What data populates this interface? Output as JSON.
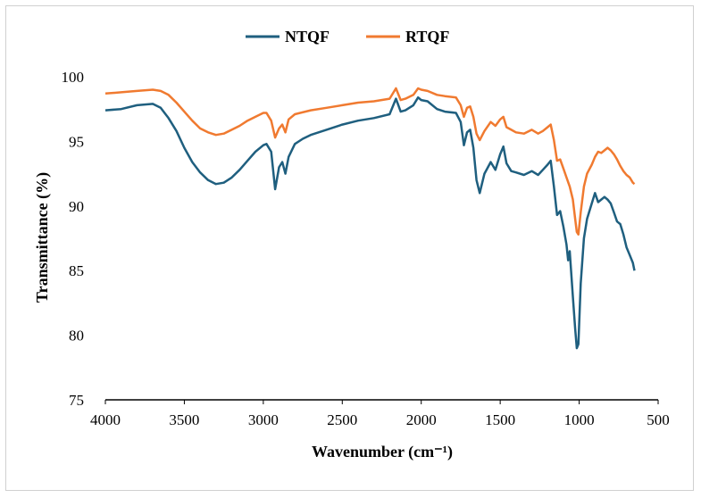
{
  "chart_data": {
    "type": "line",
    "title": "",
    "xlabel": "Wavenumber (cm⁻¹)",
    "ylabel": "Transmittance (%)",
    "xlim": [
      4000,
      500
    ],
    "ylim": [
      75,
      100
    ],
    "x_reversed": true,
    "x_ticks": [
      "4000",
      "3500",
      "3000",
      "2500",
      "2000",
      "1500",
      "1000",
      "500"
    ],
    "y_ticks": [
      "75",
      "80",
      "85",
      "90",
      "95",
      "100"
    ],
    "legend_position": "top",
    "grid": false,
    "series": [
      {
        "name": "NTQF",
        "color": "#1f5f7f",
        "points": [
          [
            4000,
            97.4
          ],
          [
            3900,
            97.5
          ],
          [
            3800,
            97.8
          ],
          [
            3700,
            97.9
          ],
          [
            3650,
            97.6
          ],
          [
            3600,
            96.8
          ],
          [
            3550,
            95.8
          ],
          [
            3500,
            94.5
          ],
          [
            3450,
            93.4
          ],
          [
            3400,
            92.6
          ],
          [
            3350,
            92.0
          ],
          [
            3300,
            91.7
          ],
          [
            3250,
            91.8
          ],
          [
            3200,
            92.2
          ],
          [
            3150,
            92.8
          ],
          [
            3100,
            93.5
          ],
          [
            3050,
            94.2
          ],
          [
            3000,
            94.7
          ],
          [
            2980,
            94.8
          ],
          [
            2950,
            94.2
          ],
          [
            2925,
            91.3
          ],
          [
            2900,
            93.0
          ],
          [
            2880,
            93.4
          ],
          [
            2860,
            92.5
          ],
          [
            2840,
            93.8
          ],
          [
            2800,
            94.8
          ],
          [
            2750,
            95.2
          ],
          [
            2700,
            95.5
          ],
          [
            2600,
            95.9
          ],
          [
            2500,
            96.3
          ],
          [
            2400,
            96.6
          ],
          [
            2300,
            96.8
          ],
          [
            2200,
            97.1
          ],
          [
            2160,
            98.3
          ],
          [
            2130,
            97.3
          ],
          [
            2100,
            97.4
          ],
          [
            2050,
            97.8
          ],
          [
            2020,
            98.4
          ],
          [
            2000,
            98.2
          ],
          [
            1960,
            98.1
          ],
          [
            1900,
            97.5
          ],
          [
            1850,
            97.3
          ],
          [
            1780,
            97.2
          ],
          [
            1750,
            96.5
          ],
          [
            1730,
            94.7
          ],
          [
            1710,
            95.7
          ],
          [
            1690,
            95.9
          ],
          [
            1670,
            94.5
          ],
          [
            1650,
            92.0
          ],
          [
            1630,
            91.0
          ],
          [
            1600,
            92.5
          ],
          [
            1560,
            93.4
          ],
          [
            1530,
            92.8
          ],
          [
            1500,
            94.0
          ],
          [
            1480,
            94.6
          ],
          [
            1460,
            93.3
          ],
          [
            1430,
            92.7
          ],
          [
            1400,
            92.6
          ],
          [
            1350,
            92.4
          ],
          [
            1300,
            92.7
          ],
          [
            1260,
            92.4
          ],
          [
            1230,
            92.8
          ],
          [
            1200,
            93.2
          ],
          [
            1180,
            93.5
          ],
          [
            1160,
            91.5
          ],
          [
            1140,
            89.3
          ],
          [
            1120,
            89.6
          ],
          [
            1100,
            88.4
          ],
          [
            1080,
            87.0
          ],
          [
            1070,
            85.8
          ],
          [
            1060,
            86.5
          ],
          [
            1040,
            83.0
          ],
          [
            1025,
            80.5
          ],
          [
            1015,
            79.0
          ],
          [
            1005,
            79.3
          ],
          [
            990,
            84.0
          ],
          [
            970,
            87.5
          ],
          [
            950,
            89.0
          ],
          [
            920,
            90.2
          ],
          [
            900,
            91.0
          ],
          [
            880,
            90.3
          ],
          [
            860,
            90.5
          ],
          [
            840,
            90.7
          ],
          [
            820,
            90.5
          ],
          [
            800,
            90.2
          ],
          [
            780,
            89.5
          ],
          [
            760,
            88.8
          ],
          [
            740,
            88.6
          ],
          [
            720,
            87.8
          ],
          [
            700,
            86.8
          ],
          [
            680,
            86.2
          ],
          [
            660,
            85.6
          ],
          [
            650,
            85.0
          ]
        ]
      },
      {
        "name": "RTQF",
        "color": "#f07a30",
        "points": [
          [
            4000,
            98.7
          ],
          [
            3900,
            98.8
          ],
          [
            3800,
            98.9
          ],
          [
            3700,
            99.0
          ],
          [
            3650,
            98.9
          ],
          [
            3600,
            98.6
          ],
          [
            3550,
            98.0
          ],
          [
            3500,
            97.3
          ],
          [
            3450,
            96.6
          ],
          [
            3400,
            96.0
          ],
          [
            3350,
            95.7
          ],
          [
            3300,
            95.5
          ],
          [
            3250,
            95.6
          ],
          [
            3200,
            95.9
          ],
          [
            3150,
            96.2
          ],
          [
            3100,
            96.6
          ],
          [
            3050,
            96.9
          ],
          [
            3000,
            97.2
          ],
          [
            2980,
            97.2
          ],
          [
            2950,
            96.6
          ],
          [
            2925,
            95.3
          ],
          [
            2900,
            96.0
          ],
          [
            2880,
            96.3
          ],
          [
            2860,
            95.7
          ],
          [
            2840,
            96.7
          ],
          [
            2800,
            97.1
          ],
          [
            2700,
            97.4
          ],
          [
            2600,
            97.6
          ],
          [
            2500,
            97.8
          ],
          [
            2400,
            98.0
          ],
          [
            2300,
            98.1
          ],
          [
            2200,
            98.3
          ],
          [
            2160,
            99.1
          ],
          [
            2130,
            98.2
          ],
          [
            2100,
            98.3
          ],
          [
            2050,
            98.6
          ],
          [
            2020,
            99.1
          ],
          [
            2000,
            99.0
          ],
          [
            1960,
            98.9
          ],
          [
            1900,
            98.6
          ],
          [
            1850,
            98.5
          ],
          [
            1780,
            98.4
          ],
          [
            1750,
            97.8
          ],
          [
            1730,
            96.9
          ],
          [
            1710,
            97.6
          ],
          [
            1690,
            97.7
          ],
          [
            1670,
            96.9
          ],
          [
            1650,
            95.6
          ],
          [
            1630,
            95.1
          ],
          [
            1600,
            95.8
          ],
          [
            1560,
            96.5
          ],
          [
            1530,
            96.2
          ],
          [
            1500,
            96.7
          ],
          [
            1480,
            96.9
          ],
          [
            1460,
            96.1
          ],
          [
            1430,
            95.9
          ],
          [
            1400,
            95.7
          ],
          [
            1350,
            95.6
          ],
          [
            1300,
            95.9
          ],
          [
            1260,
            95.6
          ],
          [
            1230,
            95.8
          ],
          [
            1200,
            96.1
          ],
          [
            1180,
            96.3
          ],
          [
            1160,
            95.1
          ],
          [
            1140,
            93.5
          ],
          [
            1120,
            93.6
          ],
          [
            1100,
            92.9
          ],
          [
            1080,
            92.2
          ],
          [
            1060,
            91.5
          ],
          [
            1040,
            90.5
          ],
          [
            1025,
            89.0
          ],
          [
            1015,
            88.0
          ],
          [
            1005,
            87.8
          ],
          [
            990,
            89.5
          ],
          [
            970,
            91.5
          ],
          [
            950,
            92.5
          ],
          [
            920,
            93.2
          ],
          [
            900,
            93.8
          ],
          [
            880,
            94.2
          ],
          [
            860,
            94.1
          ],
          [
            840,
            94.3
          ],
          [
            820,
            94.5
          ],
          [
            800,
            94.3
          ],
          [
            780,
            94.0
          ],
          [
            760,
            93.6
          ],
          [
            740,
            93.1
          ],
          [
            720,
            92.7
          ],
          [
            700,
            92.4
          ],
          [
            680,
            92.2
          ],
          [
            660,
            91.8
          ],
          [
            650,
            91.7
          ]
        ]
      }
    ]
  }
}
